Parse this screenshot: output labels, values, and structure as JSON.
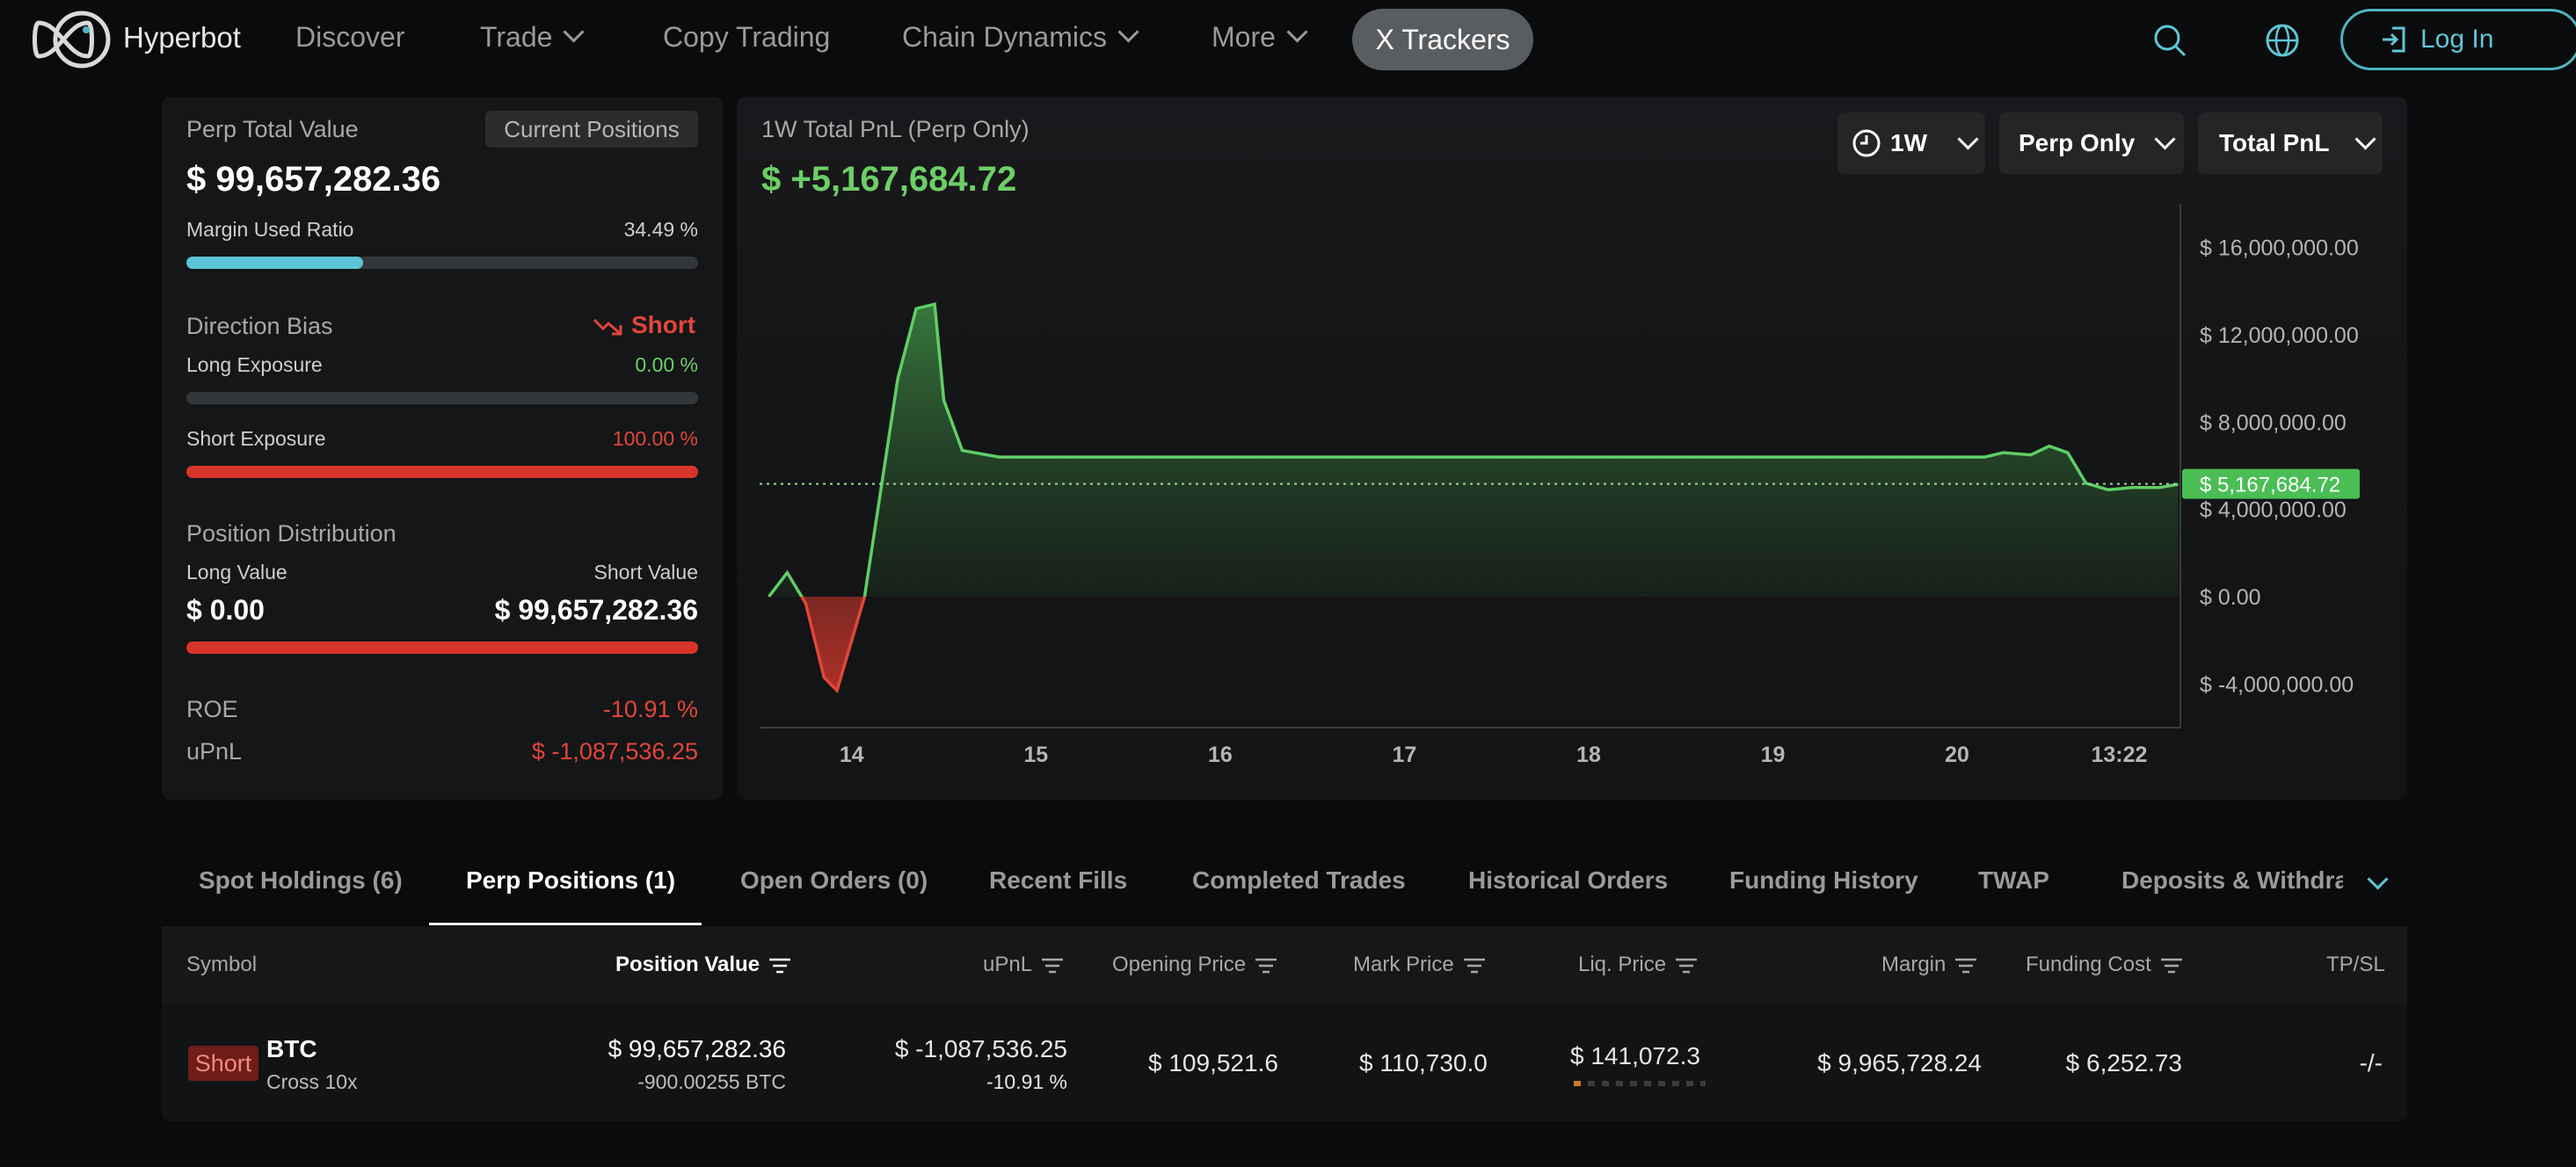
{
  "nav": {
    "brand": "Hyperbot",
    "items": [
      "Discover",
      "Trade",
      "Copy Trading",
      "Chain Dynamics",
      "More"
    ],
    "active": "X Trackers",
    "login": "Log In"
  },
  "summary": {
    "perp_total_value_label": "Perp Total Value",
    "current_positions_btn": "Current Positions",
    "perp_total_value": "$ 99,657,282.36",
    "margin_used_label": "Margin Used Ratio",
    "margin_used_value": "34.49 %",
    "margin_used_fraction": 0.3449,
    "direction_bias_label": "Direction Bias",
    "direction_bias_value": "Short",
    "long_exposure_label": "Long Exposure",
    "long_exposure_value": "0.00 %",
    "long_exposure_fraction": 0.0,
    "short_exposure_label": "Short Exposure",
    "short_exposure_value": "100.00 %",
    "short_exposure_fraction": 1.0,
    "position_distribution_label": "Position Distribution",
    "long_value_label": "Long Value",
    "short_value_label": "Short Value",
    "long_value": "$ 0.00",
    "short_value": "$ 99,657,282.36",
    "roe_label": "ROE",
    "roe_value": "-10.91 %",
    "upnl_label": "uPnL",
    "upnl_value": "$ -1,087,536.25"
  },
  "pnl": {
    "title": "1W Total PnL (Perp Only)",
    "value": "$ +5,167,684.72",
    "filters": [
      "1W",
      "Perp Only",
      "Total PnL"
    ]
  },
  "chart_data": {
    "type": "area",
    "ylim": [
      -6000000,
      18000000
    ],
    "y_ticks": [
      "$ 16,000,000.00",
      "$ 12,000,000.00",
      "$ 8,000,000.00",
      "$ 4,000,000.00",
      "$ 0.00",
      "$ -4,000,000.00"
    ],
    "y_tick_values": [
      16000000,
      12000000,
      8000000,
      4000000,
      0,
      -4000000
    ],
    "x_ticks": [
      "14",
      "15",
      "16",
      "17",
      "18",
      "19",
      "20",
      "13:22"
    ],
    "x_tick_positions": [
      14,
      15,
      16,
      17,
      18,
      19,
      20,
      20.88
    ],
    "xlim": [
      13.5,
      21.25
    ],
    "current_label": "$ 5,167,684.72",
    "current_value": 5167684.72,
    "points": [
      [
        13.55,
        0.0
      ],
      [
        13.65,
        1100000
      ],
      [
        13.75,
        -300000
      ],
      [
        13.85,
        -3700000
      ],
      [
        13.92,
        -4300000
      ],
      [
        14.07,
        0.0
      ],
      [
        14.25,
        10000000
      ],
      [
        14.35,
        13200000
      ],
      [
        14.45,
        13400000
      ],
      [
        14.5,
        9000000
      ],
      [
        14.6,
        6700000
      ],
      [
        14.8,
        6400000
      ],
      [
        15.5,
        6400000
      ],
      [
        16.5,
        6400000
      ],
      [
        17.5,
        6400000
      ],
      [
        18.5,
        6400000
      ],
      [
        19.5,
        6400000
      ],
      [
        20.15,
        6400000
      ],
      [
        20.25,
        6600000
      ],
      [
        20.4,
        6500000
      ],
      [
        20.5,
        6900000
      ],
      [
        20.6,
        6600000
      ],
      [
        20.7,
        5200000
      ],
      [
        20.82,
        4900000
      ],
      [
        20.95,
        5000000
      ],
      [
        21.1,
        5000000
      ],
      [
        21.2,
        5150000
      ]
    ],
    "colors": {
      "positive": "#5fce66",
      "negative": "#e2463a"
    }
  },
  "tabs": [
    "Spot Holdings (6)",
    "Perp Positions (1)",
    "Open Orders (0)",
    "Recent Fills",
    "Completed Trades",
    "Historical Orders",
    "Funding History",
    "TWAP",
    "Deposits & Withdraw"
  ],
  "active_tab": "Perp Positions (1)",
  "table": {
    "headers": [
      "Symbol",
      "Position Value",
      "uPnL",
      "Opening Price",
      "Mark Price",
      "Liq. Price",
      "Margin",
      "Funding Cost",
      "TP/SL"
    ],
    "row": {
      "side": "Short",
      "symbol": "BTC",
      "leverage": "Cross 10x",
      "position_value": "$ 99,657,282.36",
      "position_size": "-900.00255 BTC",
      "upnl": "$ -1,087,536.25",
      "upnl_pct": "-10.91 %",
      "opening_price": "$ 109,521.6",
      "mark_price": "$ 110,730.0",
      "liq_price": "$ 141,072.3",
      "margin": "$ 9,965,728.24",
      "funding_cost": "$ 6,252.73",
      "tpsl": "-/-"
    }
  }
}
